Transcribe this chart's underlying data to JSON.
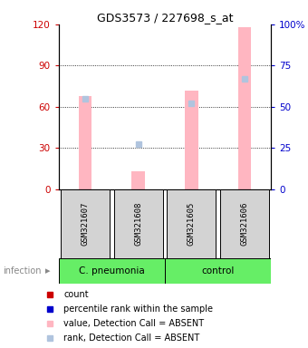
{
  "title": "GDS3573 / 227698_s_at",
  "samples": [
    "GSM321607",
    "GSM321608",
    "GSM321605",
    "GSM321606"
  ],
  "bar_values": [
    68,
    13,
    72,
    118
  ],
  "rank_values": [
    55,
    27,
    52,
    67
  ],
  "bar_color_absent": "#FFB6C1",
  "rank_color_absent": "#B0C4DE",
  "ylim_left": [
    0,
    120
  ],
  "ylim_right": [
    0,
    100
  ],
  "yticks_left": [
    0,
    30,
    60,
    90,
    120
  ],
  "yticks_right": [
    0,
    25,
    50,
    75,
    100
  ],
  "ytick_labels_left": [
    "0",
    "30",
    "60",
    "90",
    "120"
  ],
  "ytick_labels_right": [
    "0",
    "25",
    "50",
    "75",
    "100%"
  ],
  "left_tick_color": "#CC0000",
  "right_tick_color": "#0000CC",
  "bar_width": 0.25,
  "infection_label": "infection",
  "group_label_1": "C. pneumonia",
  "group_label_2": "control",
  "sample_box_color": "#D3D3D3",
  "group_color": "#66EE66",
  "legend_items": [
    {
      "color": "#CC0000",
      "marker": "s",
      "label": "count"
    },
    {
      "color": "#0000CC",
      "marker": "s",
      "label": "percentile rank within the sample"
    },
    {
      "color": "#FFB6C1",
      "marker": "s",
      "label": "value, Detection Call = ABSENT"
    },
    {
      "color": "#B0C4DE",
      "marker": "s",
      "label": "rank, Detection Call = ABSENT"
    }
  ]
}
